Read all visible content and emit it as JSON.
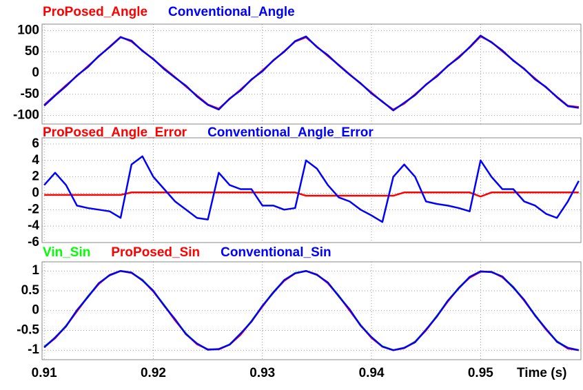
{
  "chart_data": [
    {
      "type": "line",
      "x": [
        0.91,
        0.911,
        0.912,
        0.913,
        0.914,
        0.915,
        0.916,
        0.917,
        0.918,
        0.919,
        0.92,
        0.921,
        0.922,
        0.923,
        0.924,
        0.925,
        0.926,
        0.927,
        0.928,
        0.929,
        0.93,
        0.931,
        0.932,
        0.933,
        0.934,
        0.935,
        0.936,
        0.937,
        0.938,
        0.939,
        0.94,
        0.941,
        0.942,
        0.943,
        0.944,
        0.945,
        0.946,
        0.947,
        0.948,
        0.949,
        0.95,
        0.951,
        0.952,
        0.953,
        0.954,
        0.955,
        0.956,
        0.957,
        0.958,
        0.959
      ],
      "xlim": [
        0.9098,
        0.9592
      ],
      "xticks": [
        0.91,
        0.92,
        0.93,
        0.94,
        0.95
      ],
      "ylim": [
        -120,
        115
      ],
      "yticks": [
        -100,
        -50,
        0,
        50,
        100
      ],
      "grid": true,
      "series": [
        {
          "name": "ProPosed_Angle",
          "color": "#ff0000",
          "values": [
            -75,
            -52,
            -29,
            -7,
            16,
            39,
            62,
            85,
            74,
            53,
            32,
            11,
            -10,
            -32,
            -53,
            -74,
            -84,
            -61,
            -39,
            -16,
            6,
            29,
            51,
            74,
            84,
            62,
            40,
            19,
            -3,
            -25,
            -46,
            -68,
            -86,
            -72,
            -50,
            -28,
            -6,
            16,
            38,
            60,
            86,
            73,
            51,
            30,
            9,
            -13,
            -34,
            -56,
            -77,
            -80
          ]
        },
        {
          "name": "Conventional_Angle",
          "color": "#0000ff",
          "values": [
            -77,
            -53,
            -31,
            -6,
            14,
            40,
            61,
            84,
            76,
            52,
            33,
            9,
            -11,
            -30,
            -55,
            -75,
            -86,
            -60,
            -41,
            -15,
            4,
            30,
            50,
            75,
            86,
            61,
            42,
            18,
            -4,
            -24,
            -48,
            -67,
            -88,
            -70,
            -52,
            -27,
            -8,
            17,
            36,
            61,
            88,
            72,
            53,
            29,
            10,
            -15,
            -33,
            -57,
            -78,
            -82
          ]
        }
      ]
    },
    {
      "type": "line",
      "x": [
        0.91,
        0.911,
        0.912,
        0.913,
        0.914,
        0.915,
        0.916,
        0.917,
        0.918,
        0.919,
        0.92,
        0.921,
        0.922,
        0.923,
        0.924,
        0.925,
        0.926,
        0.927,
        0.928,
        0.929,
        0.93,
        0.931,
        0.932,
        0.933,
        0.934,
        0.935,
        0.936,
        0.937,
        0.938,
        0.939,
        0.94,
        0.941,
        0.942,
        0.943,
        0.944,
        0.945,
        0.946,
        0.947,
        0.948,
        0.949,
        0.95,
        0.951,
        0.952,
        0.953,
        0.954,
        0.955,
        0.956,
        0.957,
        0.958,
        0.959
      ],
      "xlim": [
        0.9098,
        0.9592
      ],
      "xticks": [
        0.91,
        0.92,
        0.93,
        0.94,
        0.95
      ],
      "ylim": [
        -6,
        6.75
      ],
      "yticks": [
        -6,
        -4,
        -2,
        0,
        2,
        4,
        6
      ],
      "grid": true,
      "series": [
        {
          "name": "ProPosed_Angle_Error",
          "color": "#ff0000",
          "values": [
            -0.2,
            -0.2,
            -0.2,
            -0.2,
            -0.2,
            -0.2,
            -0.2,
            -0.2,
            0.1,
            0.1,
            0.1,
            0.1,
            0.1,
            0.1,
            0.1,
            0.1,
            0.1,
            0.1,
            0.1,
            0.1,
            0.1,
            0.1,
            0.1,
            0.1,
            -0.3,
            -0.3,
            -0.3,
            -0.3,
            -0.3,
            -0.3,
            -0.3,
            -0.3,
            -0.3,
            0.1,
            0.1,
            0.1,
            0.1,
            0.1,
            0.1,
            0.1,
            -0.4,
            0.1,
            0.1,
            0.1,
            0.1,
            0.1,
            0.1,
            0.1,
            0.1,
            0.1
          ]
        },
        {
          "name": "Conventional_Angle_Error",
          "color": "#0000ff",
          "values": [
            1,
            2.5,
            1,
            -1.5,
            -1.8,
            -2,
            -2.2,
            -3,
            3.5,
            4.5,
            2,
            0.5,
            -1,
            -2,
            -3,
            -3.2,
            2.5,
            1,
            0.5,
            0.5,
            -1.5,
            -1.5,
            -2,
            -1.8,
            4,
            3,
            1,
            -0.5,
            -1,
            -2,
            -2.7,
            -3.5,
            2,
            3.5,
            2,
            -1,
            -1.3,
            -1.5,
            -1.8,
            -2.2,
            4,
            2,
            0.5,
            0.5,
            -1,
            -1.5,
            -2.5,
            -3,
            -1,
            1.5
          ]
        }
      ]
    },
    {
      "type": "line",
      "xlabel": "Time (s)",
      "x": [
        0.91,
        0.911,
        0.912,
        0.913,
        0.914,
        0.915,
        0.916,
        0.917,
        0.918,
        0.919,
        0.92,
        0.921,
        0.922,
        0.923,
        0.924,
        0.925,
        0.926,
        0.927,
        0.928,
        0.929,
        0.93,
        0.931,
        0.932,
        0.933,
        0.934,
        0.935,
        0.936,
        0.937,
        0.938,
        0.939,
        0.94,
        0.941,
        0.942,
        0.943,
        0.944,
        0.945,
        0.946,
        0.947,
        0.948,
        0.949,
        0.95,
        0.951,
        0.952,
        0.953,
        0.954,
        0.955,
        0.956,
        0.957,
        0.958,
        0.959
      ],
      "xlim": [
        0.9098,
        0.9592
      ],
      "xticks": [
        0.91,
        0.92,
        0.93,
        0.94,
        0.95
      ],
      "ylim": [
        -1.24,
        1.23
      ],
      "yticks": [
        -1,
        -0.5,
        0,
        0.5,
        1
      ],
      "grid": true,
      "series": [
        {
          "name": "Vin_Sin",
          "color": "#00ff00",
          "values": [
            -0.91,
            -0.69,
            -0.38,
            -0.01,
            0.36,
            0.68,
            0.9,
            1,
            0.95,
            0.78,
            0.49,
            0.14,
            -0.24,
            -0.58,
            -0.84,
            -0.98,
            -0.98,
            -0.85,
            -0.6,
            -0.26,
            0.11,
            0.47,
            0.76,
            0.95,
            1,
            0.91,
            0.7,
            0.38,
            0.01,
            -0.36,
            -0.68,
            -0.9,
            -1,
            -0.95,
            -0.78,
            -0.49,
            -0.13,
            0.24,
            0.58,
            0.84,
            0.98,
            0.98,
            0.85,
            0.6,
            0.26,
            -0.11,
            -0.47,
            -0.77,
            -0.95,
            -1
          ]
        },
        {
          "name": "ProPosed_Sin",
          "color": "#ff0000",
          "values": [
            -0.92,
            -0.7,
            -0.39,
            -0.02,
            0.35,
            0.67,
            0.9,
            1,
            0.95,
            0.77,
            0.48,
            0.13,
            -0.25,
            -0.59,
            -0.85,
            -0.98,
            -0.98,
            -0.86,
            -0.61,
            -0.27,
            0.1,
            0.46,
            0.75,
            0.94,
            1,
            0.91,
            0.69,
            0.37,
            0,
            -0.37,
            -0.69,
            -0.91,
            -1,
            -0.95,
            -0.79,
            -0.5,
            -0.14,
            0.23,
            0.57,
            0.83,
            0.98,
            0.98,
            0.84,
            0.59,
            0.25,
            -0.12,
            -0.48,
            -0.78,
            -0.96,
            -1
          ]
        },
        {
          "name": "Conventional_Sin",
          "color": "#0000ff",
          "values": [
            -0.93,
            -0.68,
            -0.4,
            0.01,
            0.34,
            0.69,
            0.89,
            1,
            0.96,
            0.76,
            0.5,
            0.12,
            -0.22,
            -0.6,
            -0.83,
            -0.99,
            -0.97,
            -0.86,
            -0.58,
            -0.28,
            0.12,
            0.45,
            0.77,
            0.94,
            1,
            0.9,
            0.71,
            0.36,
            0.03,
            -0.38,
            -0.67,
            -0.91,
            -1,
            -0.94,
            -0.8,
            -0.48,
            -0.15,
            0.25,
            0.56,
            0.85,
            0.99,
            0.97,
            0.86,
            0.58,
            0.27,
            -0.13,
            -0.46,
            -0.79,
            -0.94,
            -1
          ]
        }
      ]
    }
  ]
}
